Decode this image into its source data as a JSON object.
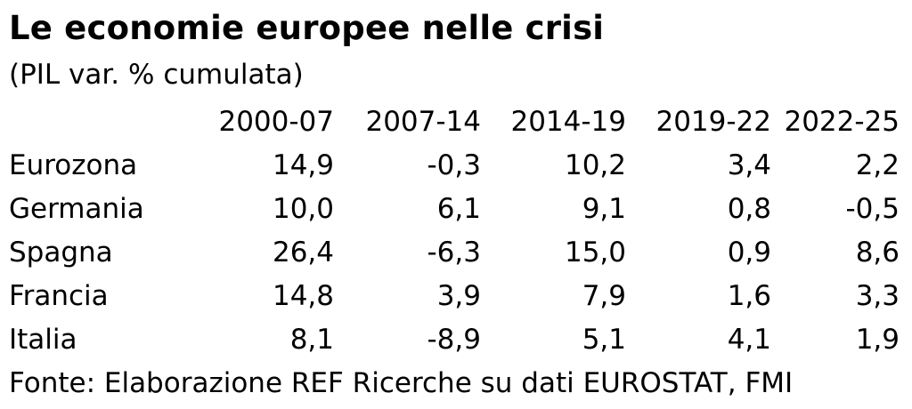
{
  "title": "Le economie europee nelle crisi",
  "subtitle": "(PIL var. % cumulata)",
  "source": "Fonte: Elaborazione REF Ricerche su dati EUROSTAT, FMI",
  "chart_data": {
    "type": "table",
    "title": "Le economie europee nelle crisi",
    "subtitle": "(PIL var. % cumulata)",
    "columns": [
      "2000-07",
      "2007-14",
      "2014-19",
      "2019-22",
      "2022-25"
    ],
    "rows": [
      {
        "label": "Eurozona",
        "values": [
          "14,9",
          "-0,3",
          "10,2",
          "3,4",
          "2,2"
        ]
      },
      {
        "label": "Germania",
        "values": [
          "10,0",
          "6,1",
          "9,1",
          "0,8",
          "-0,5"
        ]
      },
      {
        "label": "Spagna",
        "values": [
          "26,4",
          "-6,3",
          "15,0",
          "0,9",
          "8,6"
        ]
      },
      {
        "label": "Francia",
        "values": [
          "14,8",
          "3,9",
          "7,9",
          "1,6",
          "3,3"
        ]
      },
      {
        "label": "Italia",
        "values": [
          "8,1",
          "-8,9",
          "5,1",
          "4,1",
          "1,9"
        ]
      }
    ]
  }
}
